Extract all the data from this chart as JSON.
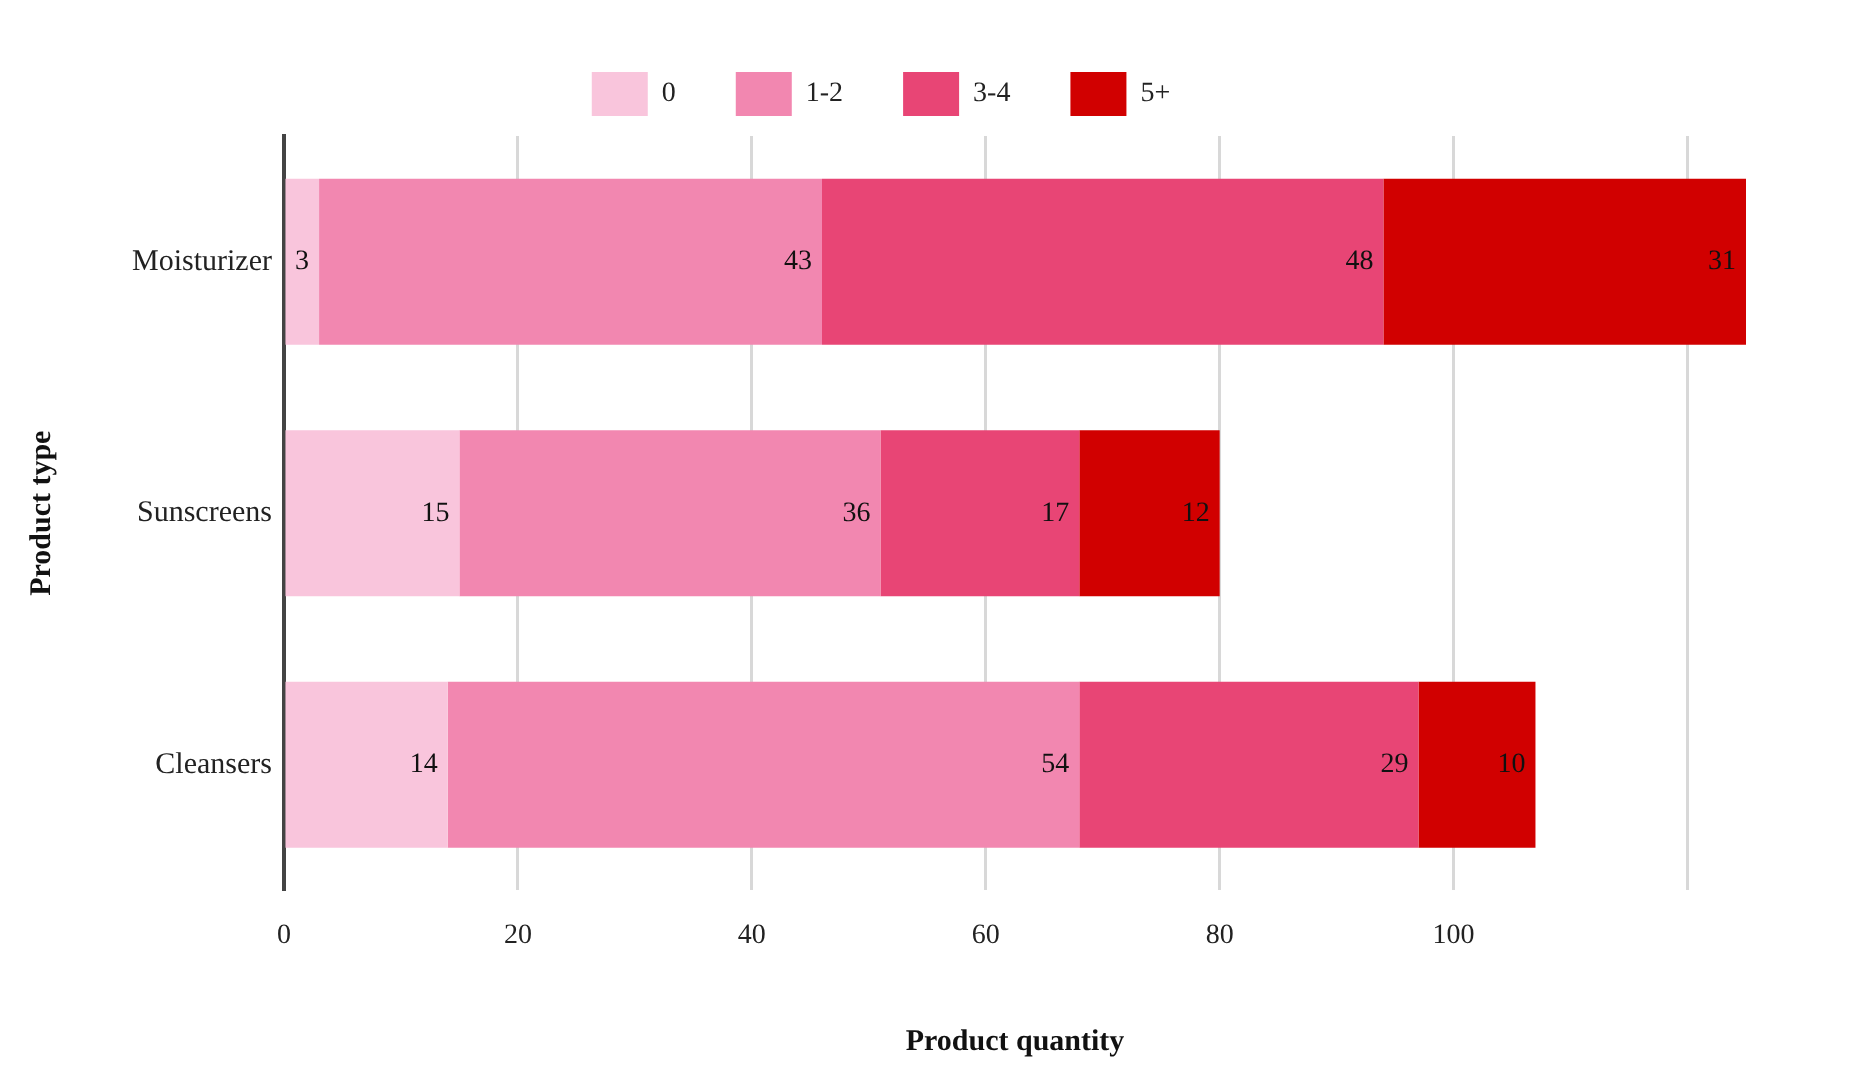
{
  "chart_data": {
    "type": "bar",
    "orientation": "horizontal",
    "stacked": true,
    "xlabel": "Product quantity",
    "ylabel": "Product type",
    "categories": [
      "Moisturizer",
      "Sunscreens",
      "Cleansers"
    ],
    "series": [
      {
        "name": "0",
        "color": "#f9c5dc",
        "values": [
          3,
          15,
          14
        ]
      },
      {
        "name": "1-2",
        "color": "#f287b0",
        "values": [
          43,
          36,
          54
        ]
      },
      {
        "name": "3-4",
        "color": "#e84575",
        "values": [
          48,
          17,
          29
        ]
      },
      {
        "name": "5+",
        "color": "#d10000",
        "values": [
          31,
          12,
          10
        ]
      }
    ],
    "xlim": [
      0,
      125
    ],
    "xticks": [
      0,
      20,
      40,
      60,
      80,
      100,
      {
        "value": 120,
        "label": null
      }
    ],
    "grid": "x",
    "legend": "top",
    "data_labels": true
  }
}
